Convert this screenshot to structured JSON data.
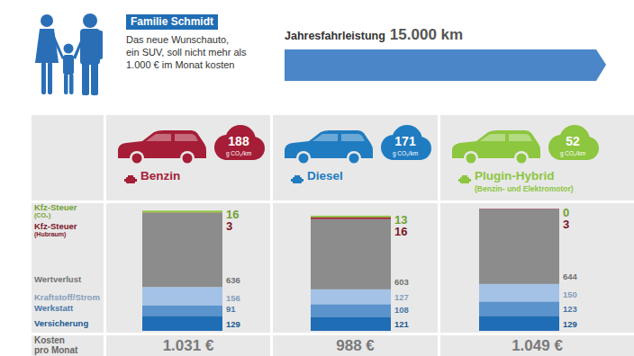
{
  "header": {
    "family": "Familie Schmidt",
    "text_lines": [
      "Das neue Wunschauto,",
      "ein SUV, soll nicht mehr als",
      "1.000 € im Monat kosten"
    ],
    "mileage_label": "Jahresfahrleistung",
    "mileage": "15.000 km"
  },
  "chart_data": {
    "type": "bar",
    "stacked": true,
    "data_labels": true,
    "tick_labels": false,
    "categories": [
      "Benzin",
      "Diesel",
      "Plugin-Hybrid"
    ],
    "category_notes": [
      null,
      null,
      "(Benzin- und Elektromotor)"
    ],
    "colors": [
      "#a51d36",
      "#1f7cc1",
      "#8dc63f"
    ],
    "co2": [
      188,
      171,
      52
    ],
    "co2_unit": "g CO₂/km",
    "series": [
      {
        "name": "Versicherung",
        "color": "#1f6db4",
        "values": [
          129,
          121,
          129
        ]
      },
      {
        "name": "Werkstatt",
        "color": "#5b93cd",
        "values": [
          91,
          108,
          123
        ]
      },
      {
        "name": "Kraftstoff/Strom",
        "color": "#a3c2e6",
        "values": [
          156,
          127,
          150
        ]
      },
      {
        "name": "Wertverlust",
        "color": "#8c8c8c",
        "values": [
          636,
          603,
          644
        ]
      },
      {
        "name": "Kfz-Steuer (Hubraum)",
        "color": "#9b1b30",
        "values": [
          3,
          16,
          3
        ]
      },
      {
        "name": "Kfz-Steuer (CO₂)",
        "color": "#8dc63f",
        "values": [
          16,
          13,
          0
        ]
      }
    ],
    "totals_label": "Kosten pro Monat",
    "totals": [
      "1.031 €",
      "988 €",
      "1.049 €"
    ]
  }
}
